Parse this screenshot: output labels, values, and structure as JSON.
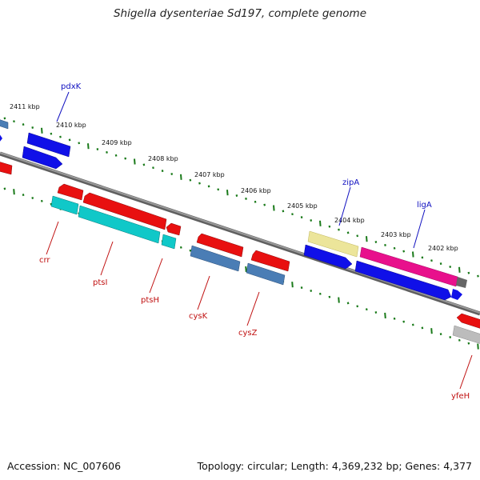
{
  "title": "Shigella dysenteriae Sd197, complete genome",
  "footer": {
    "accession": "Accession: NC_007606",
    "summary": "Topology: circular; Length: 4,369,232 bp; Genes: 4,377"
  },
  "ruler": {
    "labels": [
      "2411 kbp",
      "2410 kbp",
      "2409 kbp",
      "2408 kbp",
      "2407 kbp",
      "2406 kbp",
      "2405 kbp",
      "2404 kbp",
      "2403 kbp",
      "2402 kbp"
    ]
  },
  "genes": {
    "forward": [
      "pdxK",
      "zipA",
      "ligA"
    ],
    "reverse": [
      "crr",
      "ptsI",
      "ptsH",
      "cysK",
      "cysZ",
      "yfeH"
    ]
  },
  "colors": {
    "backbone": "#7a7a7a",
    "tick": "#1a7a1a",
    "forward_label": "#1010c0",
    "reverse_label": "#c01010",
    "blue": "#1010e8",
    "steelblue": "#3f74b0",
    "red": "#e81010",
    "cyan": "#10c8c8",
    "magenta": "#e8108c",
    "khaki": "#e8e090",
    "gray": "#bcbcbc",
    "darkgray": "#555555"
  }
}
